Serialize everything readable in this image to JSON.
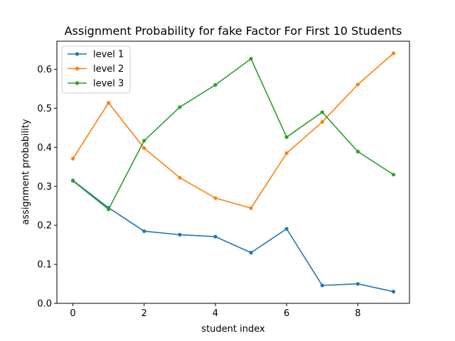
{
  "chart_data": {
    "type": "line",
    "title": "Assignment Probability for fake Factor For First 10 Students",
    "xlabel": "student index",
    "ylabel": "assignment probability",
    "x": [
      0,
      1,
      2,
      3,
      4,
      5,
      6,
      7,
      8,
      9
    ],
    "xlim": [
      -0.45,
      9.45
    ],
    "ylim": [
      0.0,
      0.672
    ],
    "xticks": [
      0,
      2,
      4,
      6,
      8
    ],
    "yticks": [
      0.0,
      0.1,
      0.2,
      0.3,
      0.4,
      0.5,
      0.6
    ],
    "ytick_labels": [
      "0.0",
      "0.1",
      "0.2",
      "0.3",
      "0.4",
      "0.5",
      "0.6"
    ],
    "grid": false,
    "legend_position": "top-left",
    "series": [
      {
        "name": "level 1",
        "color": "#1f77b4",
        "values": [
          0.315,
          0.245,
          0.185,
          0.176,
          0.171,
          0.13,
          0.191,
          0.046,
          0.05,
          0.03
        ]
      },
      {
        "name": "level 2",
        "color": "#ff7f0e",
        "values": [
          0.371,
          0.514,
          0.398,
          0.322,
          0.27,
          0.244,
          0.385,
          0.465,
          0.561,
          0.641
        ]
      },
      {
        "name": "level 3",
        "color": "#2ca02c",
        "values": [
          0.314,
          0.241,
          0.417,
          0.503,
          0.56,
          0.627,
          0.426,
          0.49,
          0.389,
          0.33
        ]
      }
    ]
  }
}
